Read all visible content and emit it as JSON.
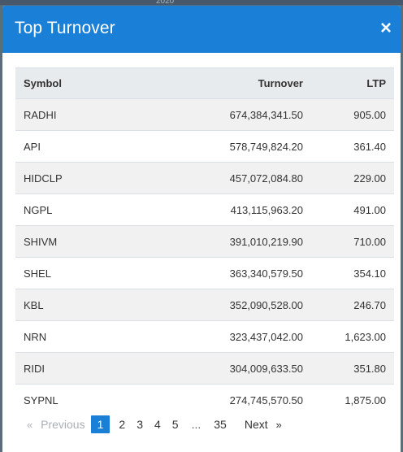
{
  "backdrop": {
    "fragment": "2020"
  },
  "modal": {
    "title": "Top Turnover",
    "close_glyph": "×"
  },
  "table": {
    "headers": {
      "symbol": "Symbol",
      "turnover": "Turnover",
      "ltp": "LTP"
    },
    "rows": [
      {
        "symbol": "RADHI",
        "turnover": "674,384,341.50",
        "ltp": "905.00"
      },
      {
        "symbol": "API",
        "turnover": "578,749,824.20",
        "ltp": "361.40"
      },
      {
        "symbol": "HIDCLP",
        "turnover": "457,072,084.80",
        "ltp": "229.00"
      },
      {
        "symbol": "NGPL",
        "turnover": "413,115,963.20",
        "ltp": "491.00"
      },
      {
        "symbol": "SHIVM",
        "turnover": "391,010,219.90",
        "ltp": "710.00"
      },
      {
        "symbol": "SHEL",
        "turnover": "363,340,579.50",
        "ltp": "354.10"
      },
      {
        "symbol": "KBL",
        "turnover": "352,090,528.00",
        "ltp": "246.70"
      },
      {
        "symbol": "NRN",
        "turnover": "323,437,042.00",
        "ltp": "1,623.00"
      },
      {
        "symbol": "RIDI",
        "turnover": "304,009,633.50",
        "ltp": "351.80"
      },
      {
        "symbol": "SYPNL",
        "turnover": "274,745,570.50",
        "ltp": "1,875.00"
      }
    ]
  },
  "pagination": {
    "prev_arrow": "«",
    "prev_label": "Previous",
    "pages": [
      "1",
      "2",
      "3",
      "4",
      "5"
    ],
    "ellipsis": "...",
    "last_page": "35",
    "next_label": "Next",
    "next_arrow": "»",
    "current_page": "1"
  },
  "colors": {
    "header_blue": "#1a7fd6",
    "active_page": "#1a7fd6",
    "table_header_bg": "#e8ebee",
    "striped_row_bg": "#f1f1f1"
  },
  "icons": {
    "close": "close-icon"
  }
}
